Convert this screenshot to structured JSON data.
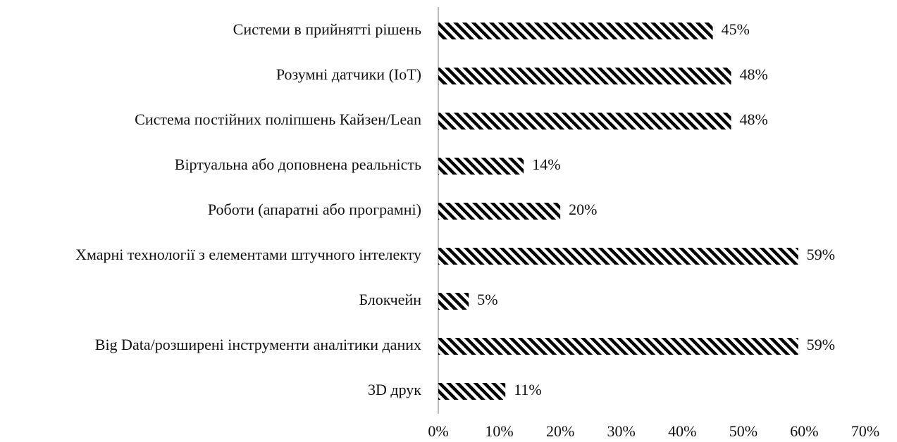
{
  "chart_data": {
    "type": "barh",
    "categories": [
      "Системи в прийнятті рішень",
      "Розумні датчики (IoT)",
      "Система постійних поліпшень Кайзен/Lean",
      "Віртуальна або доповнена реальність",
      "Роботи (апаратні або програмні)",
      "Хмарні технології з елементами штучного інтелекту",
      "Блокчейн",
      "Big Data/розширені інструменти аналітики даних",
      "3D друк"
    ],
    "values": [
      45,
      48,
      48,
      14,
      20,
      59,
      5,
      59,
      11
    ],
    "value_labels": [
      "45%",
      "48%",
      "48%",
      "14%",
      "20%",
      "59%",
      "5%",
      "59%",
      "11%"
    ],
    "color": "#000000",
    "xlim": [
      0,
      70
    ],
    "xticks": [
      {
        "value": 0,
        "label": "0%"
      },
      {
        "value": 10,
        "label": "10%"
      },
      {
        "value": 20,
        "label": "20%"
      },
      {
        "value": 30,
        "label": "30%"
      },
      {
        "value": 40,
        "label": "40%"
      },
      {
        "value": 50,
        "label": "50%"
      },
      {
        "value": 60,
        "label": "60%"
      },
      {
        "value": 70,
        "label": "70%"
      }
    ]
  }
}
